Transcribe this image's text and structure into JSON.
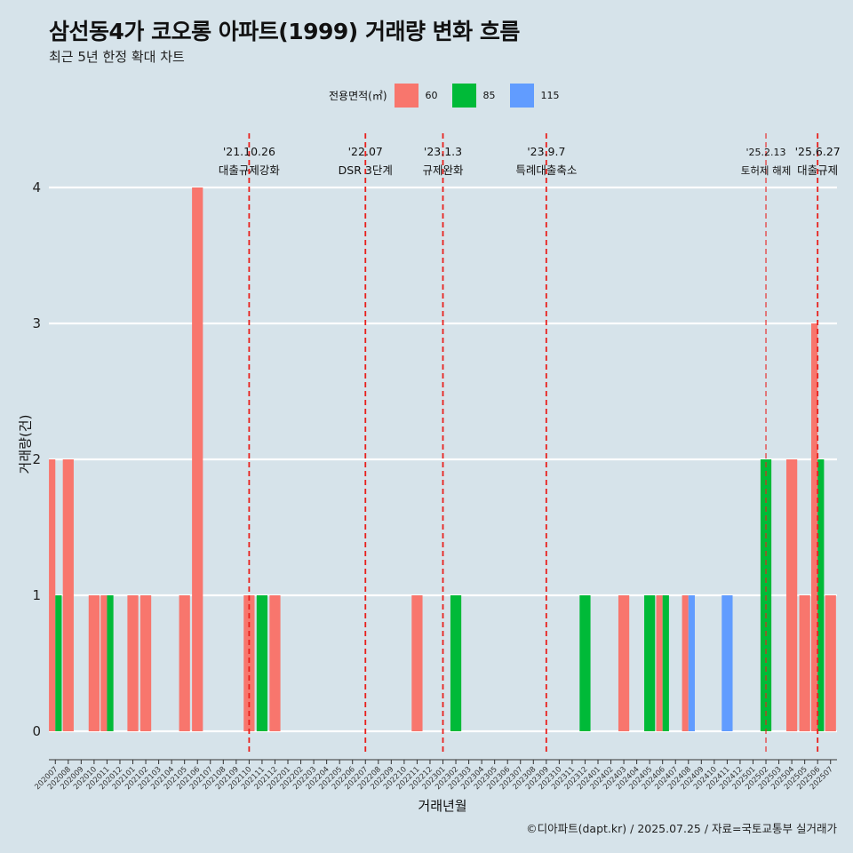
{
  "header": {
    "title": "삼선동4가 코오롱 아파트(1999) 거래량 변화 흐름",
    "subtitle": "최근 5년 한정 확대 차트"
  },
  "legend": {
    "title": "전용면적(㎡)",
    "items": [
      {
        "label": "60",
        "color": "#f8766d"
      },
      {
        "label": "85",
        "color": "#00ba38"
      },
      {
        "label": "115",
        "color": "#619cff"
      }
    ]
  },
  "caption": "©디아파트(dapt.kr) / 2025.07.25 / 자료=국토교통부 실거래가",
  "chart_data": {
    "type": "bar",
    "xlabel": "거래년월",
    "ylabel": "거래량(건)",
    "ylim": [
      0,
      4
    ],
    "yticks": [
      0,
      1,
      2,
      3,
      4
    ],
    "categories": [
      "202007",
      "202008",
      "202009",
      "202010",
      "202011",
      "202012",
      "202101",
      "202102",
      "202103",
      "202104",
      "202105",
      "202106",
      "202107",
      "202108",
      "202109",
      "202110",
      "202111",
      "202112",
      "202201",
      "202202",
      "202203",
      "202204",
      "202205",
      "202206",
      "202207",
      "202208",
      "202209",
      "202210",
      "202211",
      "202212",
      "202301",
      "202302",
      "202303",
      "202304",
      "202305",
      "202306",
      "202307",
      "202308",
      "202309",
      "202310",
      "202311",
      "202312",
      "202401",
      "202402",
      "202403",
      "202404",
      "202405",
      "202406",
      "202407",
      "202408",
      "202409",
      "202410",
      "202411",
      "202412",
      "202501",
      "202502",
      "202503",
      "202504",
      "202505",
      "202506",
      "202507"
    ],
    "series": [
      {
        "name": "60",
        "color": "#f8766d",
        "values": [
          2,
          2,
          0,
          1,
          1,
          0,
          1,
          1,
          0,
          0,
          1,
          4,
          0,
          0,
          0,
          1,
          0,
          1,
          0,
          0,
          0,
          0,
          0,
          0,
          0,
          0,
          0,
          0,
          1,
          0,
          0,
          0,
          0,
          0,
          0,
          0,
          0,
          0,
          0,
          0,
          0,
          0,
          0,
          0,
          1,
          0,
          0,
          1,
          0,
          1,
          0,
          0,
          0,
          0,
          0,
          0,
          0,
          2,
          1,
          3,
          1
        ]
      },
      {
        "name": "85",
        "color": "#00ba38",
        "values": [
          1,
          0,
          0,
          0,
          1,
          0,
          0,
          0,
          0,
          0,
          0,
          0,
          0,
          0,
          0,
          0,
          1,
          0,
          0,
          0,
          0,
          0,
          0,
          0,
          0,
          0,
          0,
          0,
          0,
          0,
          0,
          1,
          0,
          0,
          0,
          0,
          0,
          0,
          0,
          0,
          0,
          1,
          0,
          0,
          0,
          0,
          1,
          1,
          0,
          0,
          0,
          0,
          0,
          0,
          0,
          2,
          0,
          0,
          0,
          2,
          0
        ]
      },
      {
        "name": "115",
        "color": "#619cff",
        "values": [
          0,
          0,
          0,
          0,
          0,
          0,
          0,
          0,
          0,
          0,
          0,
          0,
          0,
          0,
          0,
          0,
          0,
          0,
          0,
          0,
          0,
          0,
          0,
          0,
          0,
          0,
          0,
          0,
          0,
          0,
          0,
          0,
          0,
          0,
          0,
          0,
          0,
          0,
          0,
          0,
          0,
          0,
          0,
          0,
          0,
          0,
          0,
          0,
          0,
          1,
          0,
          0,
          1,
          0,
          0,
          0,
          0,
          0,
          0,
          0,
          0
        ]
      }
    ],
    "events": [
      {
        "date": "'21.10.26",
        "label": "대출규제강화",
        "at": "202110"
      },
      {
        "date": "'22.07",
        "label": "DSR 3단계",
        "at": "202207"
      },
      {
        "date": "'23.1.3",
        "label": "규제완화",
        "at": "202301"
      },
      {
        "date": "'23.9.7",
        "label": "특례대출축소",
        "at": "202309"
      },
      {
        "date": "'25.2.13",
        "label": "토허제 해제",
        "at": "202502"
      },
      {
        "date": "'25.6.27",
        "label": "대출규제",
        "at": "202506"
      }
    ]
  }
}
